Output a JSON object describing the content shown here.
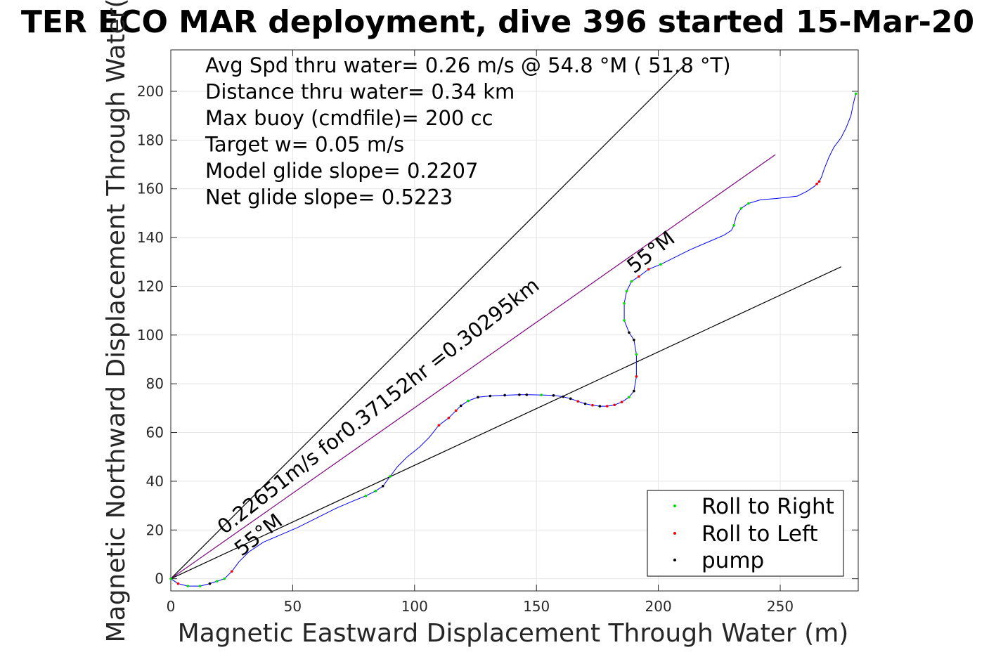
{
  "chart_data": {
    "type": "line",
    "title": "TER ECO MAR deployment, dive 396 started 15-Mar-20",
    "xlabel": "Magnetic Eastward Displacement Through Water (m)",
    "ylabel": "Magnetic Northward Displacement Through Water(",
    "xlim": [
      0,
      282
    ],
    "ylim": [
      -5,
      217
    ],
    "xticks": [
      0,
      50,
      100,
      150,
      200,
      250
    ],
    "yticks": [
      0,
      20,
      40,
      60,
      80,
      100,
      120,
      140,
      160,
      180,
      200
    ],
    "grid": true,
    "info_lines": [
      "Avg Spd thru water=  0.26 m/s @  54.8 °M ( 51.8 °T)",
      "Distance thru water=  0.34 km",
      "Max buoy (cmdfile)= 200 cc",
      "Target w= 0.05 m/s",
      "Model glide slope= 0.2207",
      "Net glide slope= 0.5223"
    ],
    "annotations": [
      {
        "text": "0.22651m/s for0.37152hr =0.30295km",
        "x": 22,
        "y": 18,
        "angle": -38
      },
      {
        "text": "55°M",
        "x": 29,
        "y": 9,
        "angle": -38
      },
      {
        "text": "55°M",
        "x": 190,
        "y": 125,
        "angle": -38
      }
    ],
    "ref_lines": [
      {
        "name": "upper-bound-line",
        "color": "#000000",
        "x": [
          0,
          210
        ],
        "y": [
          0,
          210
        ]
      },
      {
        "name": "heading-line",
        "color": "#800080",
        "x": [
          0,
          248
        ],
        "y": [
          0,
          174
        ]
      },
      {
        "name": "lower-bound-line",
        "color": "#000000",
        "x": [
          0,
          275
        ],
        "y": [
          0,
          128
        ]
      }
    ],
    "track": {
      "color": "#0000ff",
      "x": [
        0,
        3,
        7,
        12,
        16,
        19,
        22,
        25,
        28,
        32,
        38,
        45,
        52,
        60,
        68,
        75,
        80,
        84,
        87,
        90,
        93,
        97,
        102,
        106,
        110,
        114,
        117,
        119,
        122,
        126,
        131,
        137,
        143,
        146,
        152,
        157,
        161,
        164,
        167,
        170,
        173,
        176,
        179,
        182,
        185,
        188,
        190,
        191,
        191,
        190,
        188,
        186,
        186,
        187,
        189,
        192,
        196,
        201,
        207,
        213,
        220,
        227,
        230,
        231,
        232,
        234,
        237,
        242,
        248,
        253,
        257,
        261,
        264,
        265,
        266,
        267,
        268,
        270,
        272,
        275,
        277,
        279,
        280,
        281
      ],
      "y": [
        0,
        -2,
        -3,
        -3,
        -2,
        -1,
        0,
        3,
        7,
        11,
        15,
        18,
        21,
        25,
        29,
        32,
        34,
        36,
        38,
        42,
        46,
        50,
        54,
        58,
        63,
        66,
        69,
        71,
        73,
        74.5,
        75,
        75.3,
        75.5,
        75.5,
        75.4,
        75.2,
        74.7,
        73.9,
        72.8,
        71.8,
        71.2,
        70.8,
        70.8,
        71.3,
        72.5,
        74.5,
        77,
        83,
        92,
        98,
        101,
        106,
        113,
        118,
        122,
        124,
        127,
        129,
        132,
        135,
        138,
        141,
        143,
        145,
        149,
        152,
        154,
        155.5,
        156,
        156.5,
        157,
        159,
        161,
        162,
        163,
        165,
        168,
        173,
        177,
        181,
        185,
        190,
        195,
        199
      ],
      "roll_right_idx": [
        0,
        2,
        3,
        5,
        6,
        16,
        17,
        19,
        28,
        34,
        45,
        48,
        51,
        52,
        53,
        54,
        57,
        63,
        65,
        66,
        83
      ],
      "roll_left_idx": [
        1,
        7,
        24,
        25,
        26,
        38,
        40,
        42,
        43,
        44,
        47,
        55,
        56,
        73,
        74
      ],
      "pump_idx": [
        4,
        18,
        27,
        29,
        30,
        31,
        32,
        33,
        35,
        36,
        37,
        39,
        41,
        46,
        49,
        50
      ]
    },
    "legend": {
      "position": "bottom-right",
      "items": [
        {
          "label": "Roll to Right",
          "color": "#00e000"
        },
        {
          "label": "Roll to Left",
          "color": "#ff0000"
        },
        {
          "label": "pump",
          "color": "#000000"
        }
      ]
    }
  }
}
